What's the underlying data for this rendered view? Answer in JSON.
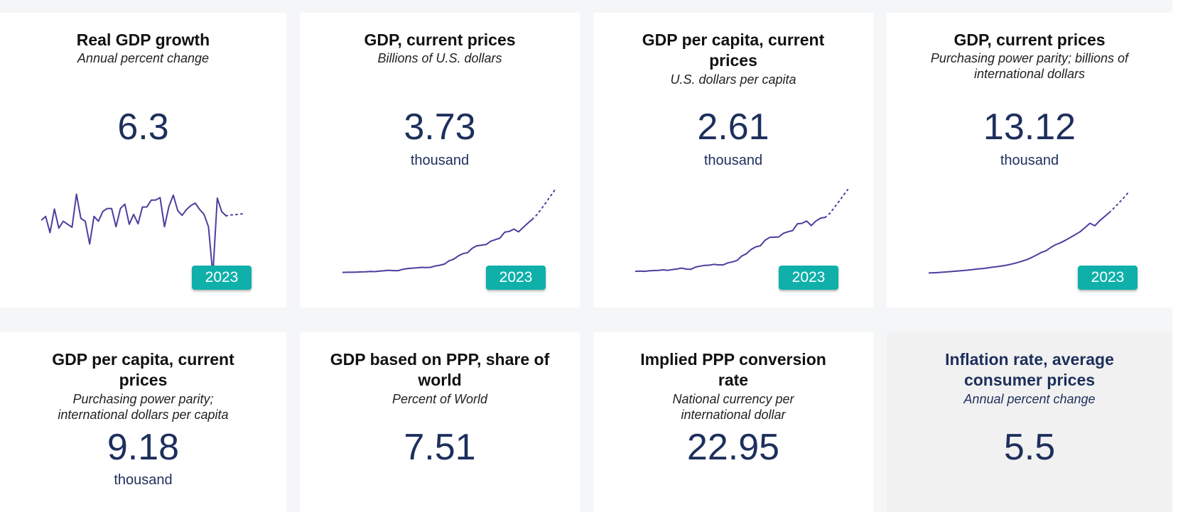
{
  "cards": [
    {
      "title": "Real GDP growth",
      "subtitle": "Annual percent change",
      "value": "6.3",
      "unit": "",
      "year": "2023",
      "sparkline": {
        "values": [
          5.2,
          6.0,
          2.7,
          7.5,
          3.6,
          5.0,
          4.4,
          3.8,
          10.5,
          5.6,
          5.0,
          0.4,
          6.0,
          5.0,
          7.0,
          7.6,
          7.6,
          3.9,
          7.6,
          8.5,
          4.4,
          6.4,
          4.5,
          7.9,
          7.9,
          9.3,
          9.3,
          9.8,
          3.9,
          8.0,
          10.3,
          7.2,
          6.2,
          7.4,
          8.2,
          8.7,
          7.4,
          6.4,
          3.9,
          -5.8,
          9.7,
          7.0,
          6.1
        ],
        "forecast": [
          6.1,
          6.3,
          6.3,
          6.5,
          6.5
        ]
      }
    },
    {
      "title": "GDP, current prices",
      "subtitle": "Billions of U.S. dollars",
      "value": "3.73",
      "unit": "thousand",
      "year": "2023",
      "sparkline": {
        "values": [
          0.19,
          0.2,
          0.2,
          0.21,
          0.22,
          0.23,
          0.25,
          0.24,
          0.27,
          0.29,
          0.32,
          0.3,
          0.3,
          0.38,
          0.42,
          0.45,
          0.47,
          0.5,
          0.49,
          0.5,
          0.58,
          0.63,
          0.7,
          0.9,
          1.0,
          1.2,
          1.34,
          1.4,
          1.67,
          1.82,
          1.86,
          1.9,
          2.1,
          2.2,
          2.29,
          2.65,
          2.7,
          2.84,
          2.67,
          2.94,
          3.2,
          3.45
        ],
        "forecast": [
          3.45,
          3.73,
          4.1,
          4.5,
          4.9,
          5.3
        ]
      }
    },
    {
      "title": "GDP per capita, current prices",
      "subtitle": "U.S. dollars per capita",
      "value": "2.61",
      "unit": "thousand",
      "year": "2023",
      "sparkline": {
        "values": [
          0.27,
          0.28,
          0.27,
          0.29,
          0.3,
          0.31,
          0.33,
          0.31,
          0.34,
          0.36,
          0.4,
          0.36,
          0.35,
          0.44,
          0.48,
          0.51,
          0.52,
          0.55,
          0.53,
          0.53,
          0.61,
          0.65,
          0.71,
          0.89,
          0.98,
          1.15,
          1.26,
          1.3,
          1.52,
          1.64,
          1.65,
          1.66,
          1.81,
          1.87,
          1.92,
          2.19,
          2.21,
          2.3,
          2.12,
          2.3,
          2.42,
          2.45
        ],
        "forecast": [
          2.45,
          2.61,
          2.85,
          3.1,
          3.36,
          3.6
        ]
      }
    },
    {
      "title": "GDP, current prices",
      "subtitle": "Purchasing power parity; billions of international dollars",
      "value": "13.12",
      "unit": "thousand",
      "year": "2023",
      "sparkline": {
        "values": [
          0.5,
          0.54,
          0.59,
          0.66,
          0.73,
          0.81,
          0.88,
          0.96,
          1.05,
          1.15,
          1.26,
          1.34,
          1.45,
          1.6,
          1.72,
          1.85,
          2.0,
          2.22,
          2.46,
          2.73,
          3.05,
          3.45,
          3.93,
          4.43,
          4.78,
          5.43,
          5.97,
          6.34,
          6.82,
          7.36,
          7.9,
          8.47,
          9.27,
          10.1,
          9.63,
          10.6,
          11.4,
          12.2
        ],
        "forecast": [
          12.2,
          13.12,
          14.1,
          15.1,
          16.2
        ]
      }
    },
    {
      "title": "GDP per capita, current prices",
      "subtitle": "Purchasing power parity; international dollars per capita",
      "value": "9.18",
      "unit": "thousand"
    },
    {
      "title": "GDP based on PPP, share of world",
      "subtitle": "Percent of World",
      "value": "7.51",
      "unit": ""
    },
    {
      "title": "Implied PPP conversion rate",
      "subtitle": "National currency per international dollar",
      "value": "22.95",
      "unit": ""
    },
    {
      "title": "Inflation rate, average consumer prices",
      "subtitle": "Annual percent change",
      "value": "5.5",
      "unit": ""
    }
  ],
  "colors": {
    "sparkline": "#4a3f9e",
    "badge": "#0fb0aa",
    "value_text": "#1d2f5c"
  }
}
